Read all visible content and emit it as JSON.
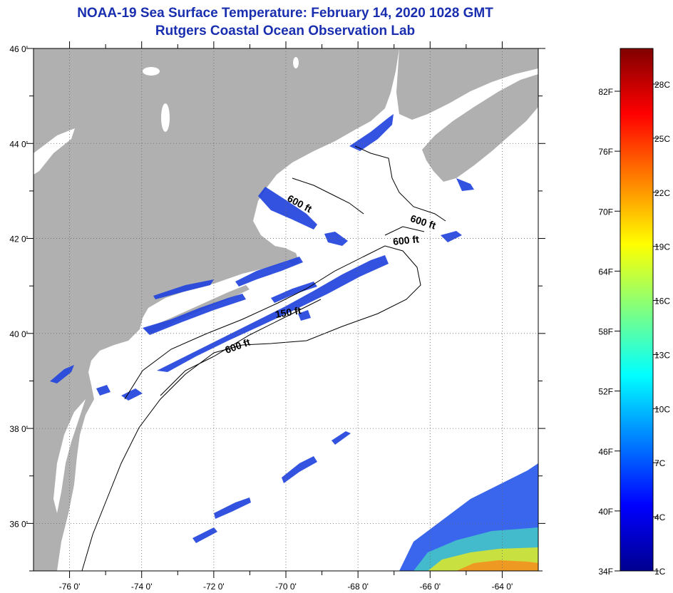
{
  "title": {
    "line1": "NOAA-19 Sea Surface Temperature:  February 14, 2020 1028 GMT",
    "line2": "Rutgers Coastal Ocean Observation Lab"
  },
  "map": {
    "lat_labels": [
      {
        "lat": 46,
        "label": "46 0'"
      },
      {
        "lat": 44,
        "label": "44 0'"
      },
      {
        "lat": 42,
        "label": "42 0'"
      },
      {
        "lat": 40,
        "label": "40 0'"
      },
      {
        "lat": 38,
        "label": "38 0'"
      },
      {
        "lat": 36,
        "label": "36 0'"
      }
    ],
    "lon_labels": [
      {
        "lon": -76,
        "label": "-76 0'"
      },
      {
        "lon": -74,
        "label": "-74 0'"
      },
      {
        "lon": -72,
        "label": "-72 0'"
      },
      {
        "lon": -70,
        "label": "-70 0'"
      },
      {
        "lon": -68,
        "label": "-68 0'"
      },
      {
        "lon": -66,
        "label": "-66 0'"
      },
      {
        "lon": -64,
        "label": "-64 0'"
      }
    ],
    "lon_range": [
      -77,
      -63
    ],
    "lat_range": [
      35,
      46
    ],
    "grid": "dotted",
    "land_color": "#b0b0b0",
    "water_color": "#ffffff",
    "contour_labels": [
      {
        "text": "600 ft"
      },
      {
        "text": "600 ft"
      },
      {
        "text": "600 ft"
      },
      {
        "text": "150 ft"
      },
      {
        "text": "600 ft"
      }
    ]
  },
  "colorbar": {
    "fahrenheit_labels": [
      "82F",
      "76F",
      "70F",
      "64F",
      "58F",
      "52F",
      "46F",
      "40F",
      "34F"
    ],
    "celsius_labels": [
      "28C",
      "25C",
      "22C",
      "19C",
      "16C",
      "13C",
      "10C",
      "7C",
      "4C",
      "1C"
    ],
    "colors": [
      "#00008f",
      "#0000ff",
      "#0080ff",
      "#00ffff",
      "#80ff80",
      "#ffff00",
      "#ff8000",
      "#ff0000",
      "#800000"
    ]
  }
}
